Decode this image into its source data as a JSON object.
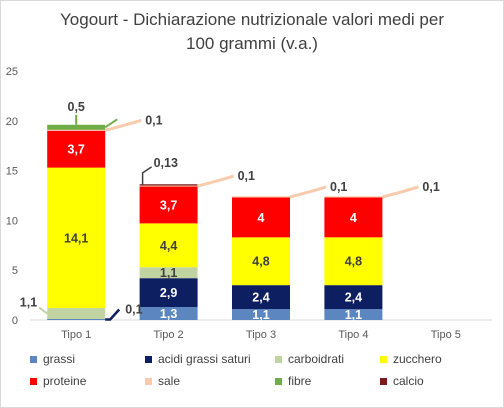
{
  "chart_data": {
    "type": "bar",
    "stacked": true,
    "title_lines": [
      "Yogourt - Dichiarazione nutrizionale valori medi per",
      "100 grammi (v.a.)"
    ],
    "categories": [
      "Tipo 1",
      "Tipo 2",
      "Tipo 3",
      "Tipo 4",
      "Tipo 5"
    ],
    "ylim": [
      0,
      25
    ],
    "yticks": [
      "0",
      "5",
      "10",
      "15",
      "20",
      "25"
    ],
    "grid": false,
    "legend_position": "bottom",
    "series": [
      {
        "name": "grassi",
        "color": "#5b86bf",
        "values": [
          0.1,
          1.3,
          1.1,
          1.1,
          null
        ],
        "labels": [
          "0,1",
          "1,3",
          "1,1",
          "1,1",
          ""
        ],
        "label_color": "#ffffff"
      },
      {
        "name": "acidi grassi saturi",
        "color": "#0d1f60",
        "values": [
          0,
          2.9,
          2.4,
          2.4,
          null
        ],
        "labels": [
          "",
          "2,9",
          "2,4",
          "2,4",
          ""
        ],
        "label_color": "#ffffff"
      },
      {
        "name": "carboidrati",
        "color": "#c2d3a2",
        "values": [
          1.1,
          1.1,
          0,
          0,
          null
        ],
        "labels": [
          "1,1",
          "1,1",
          "",
          "",
          ""
        ],
        "label_color": "#404040"
      },
      {
        "name": "zucchero",
        "color": "#ffff00",
        "values": [
          14.1,
          4.4,
          4.8,
          4.8,
          null
        ],
        "labels": [
          "14,1",
          "4,4",
          "4,8",
          "4,8",
          ""
        ],
        "label_color": "#404040"
      },
      {
        "name": "proteine",
        "color": "#ff0000",
        "values": [
          3.7,
          3.7,
          4,
          4,
          null
        ],
        "labels": [
          "3,7",
          "3,7",
          "4",
          "4",
          ""
        ],
        "label_color": "#ffffff"
      },
      {
        "name": "sale",
        "color": "#f8cbad",
        "values": [
          0.1,
          0.1,
          0.1,
          0.1,
          null
        ],
        "labels": [
          "0,1",
          "0,1",
          "0,1",
          "0,1",
          ""
        ],
        "label_color": "#404040"
      },
      {
        "name": "fibre",
        "color": "#70ad47",
        "values": [
          0.5,
          0,
          0,
          0,
          null
        ],
        "labels": [
          "0,5",
          "",
          "",
          "",
          ""
        ],
        "label_color": "#404040"
      },
      {
        "name": "calcio",
        "color": "#7b1c1c",
        "values": [
          0,
          0.13,
          0,
          0,
          null
        ],
        "labels": [
          "",
          "0,13",
          "",
          "",
          ""
        ],
        "label_color": "#404040"
      }
    ]
  }
}
